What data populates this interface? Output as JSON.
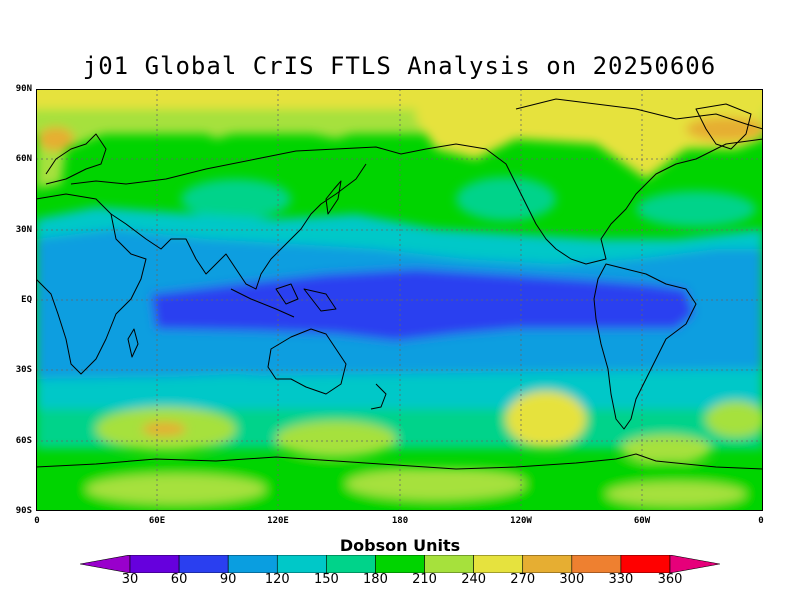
{
  "title": "j01 Global CrIS FTLS Analysis on 20250606",
  "map": {
    "type": "global-contour-map",
    "projection": "equirectangular",
    "lon_range": [
      0,
      360
    ],
    "lat_range": [
      -90,
      90
    ],
    "grid": true,
    "lat_labels": [
      "90N",
      "60N",
      "30N",
      "EQ",
      "30S",
      "60S",
      "90S"
    ],
    "lon_labels": [
      "0",
      "60E",
      "120E",
      "180",
      "120W",
      "60W",
      "0"
    ]
  },
  "colorbar": {
    "title": "Dobson Units",
    "levels": [
      "30",
      "60",
      "90",
      "120",
      "150",
      "180",
      "210",
      "240",
      "270",
      "300",
      "330",
      "360"
    ],
    "colors": [
      "#9900cc",
      "#6600dd",
      "#2a3ff0",
      "#0a9ee0",
      "#00c8c8",
      "#00d38a",
      "#00d400",
      "#a6e13c",
      "#e6e23e",
      "#e6ae32",
      "#ee8030",
      "#ff0000",
      "#e6007a"
    ],
    "extend": "both"
  }
}
